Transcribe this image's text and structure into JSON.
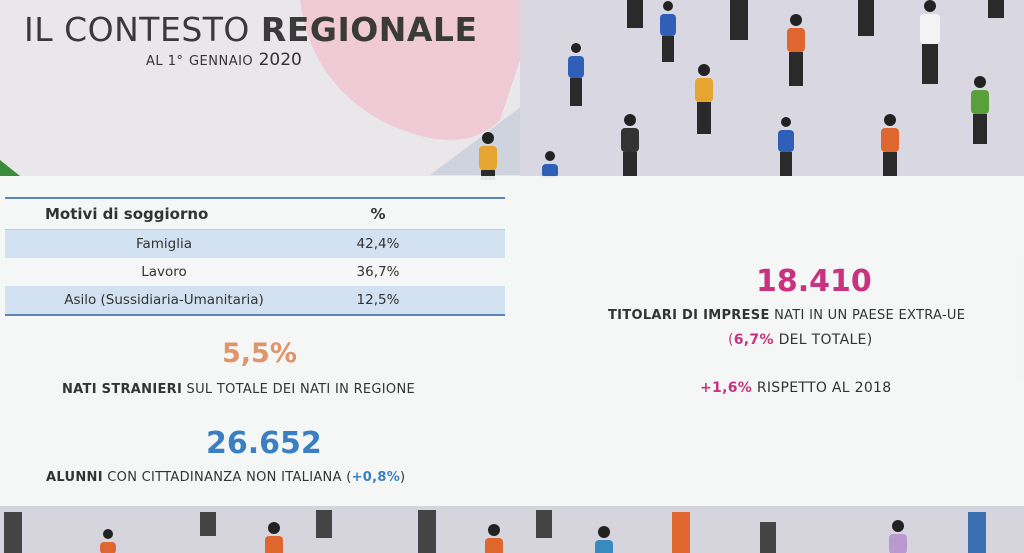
{
  "header": {
    "title_plain": "IL CONTESTO",
    "title_bold": "REGIONALE",
    "subtitle_prefix": "AL 1°",
    "subtitle_month": "GENNAIO",
    "subtitle_year": "2020"
  },
  "permits_table": {
    "col_reason": "Motivi di soggiorno",
    "col_pct": "%",
    "rows": [
      {
        "reason": "Famiglia",
        "pct": "42,4%"
      },
      {
        "reason": "Lavoro",
        "pct": "36,7%"
      },
      {
        "reason": "Asilo (Sussidiaria-Umanitaria)",
        "pct": "12,5%"
      }
    ]
  },
  "births": {
    "value": "5,5%",
    "label_bold": "NATI STRANIERI",
    "label_rest": "SUL TOTALE DEI NATI IN REGIONE"
  },
  "students": {
    "value": "26.652",
    "label_bold": "ALUNNI",
    "label_rest": "CON CITTADINANZA NON ITALIANA (",
    "change": "+0,8%",
    "label_end": ")"
  },
  "entrepreneurs": {
    "value": "18.410",
    "label_bold": "TITOLARI DI IMPRESE",
    "label_rest": "NATI IN UN PAESE EXTRA-UE",
    "share_open": "(",
    "share": "6,7%",
    "share_rest": "DEL TOTALE)",
    "delta": "+1,6%",
    "delta_rest": "RISPETTO AL 2018"
  },
  "colors": {
    "births_accent": "#e0946a",
    "students_accent": "#3a7fc1",
    "entrepreneurs_accent": "#c8327e",
    "table_band": "#d3e2f2",
    "table_rule": "#5d86b8"
  }
}
